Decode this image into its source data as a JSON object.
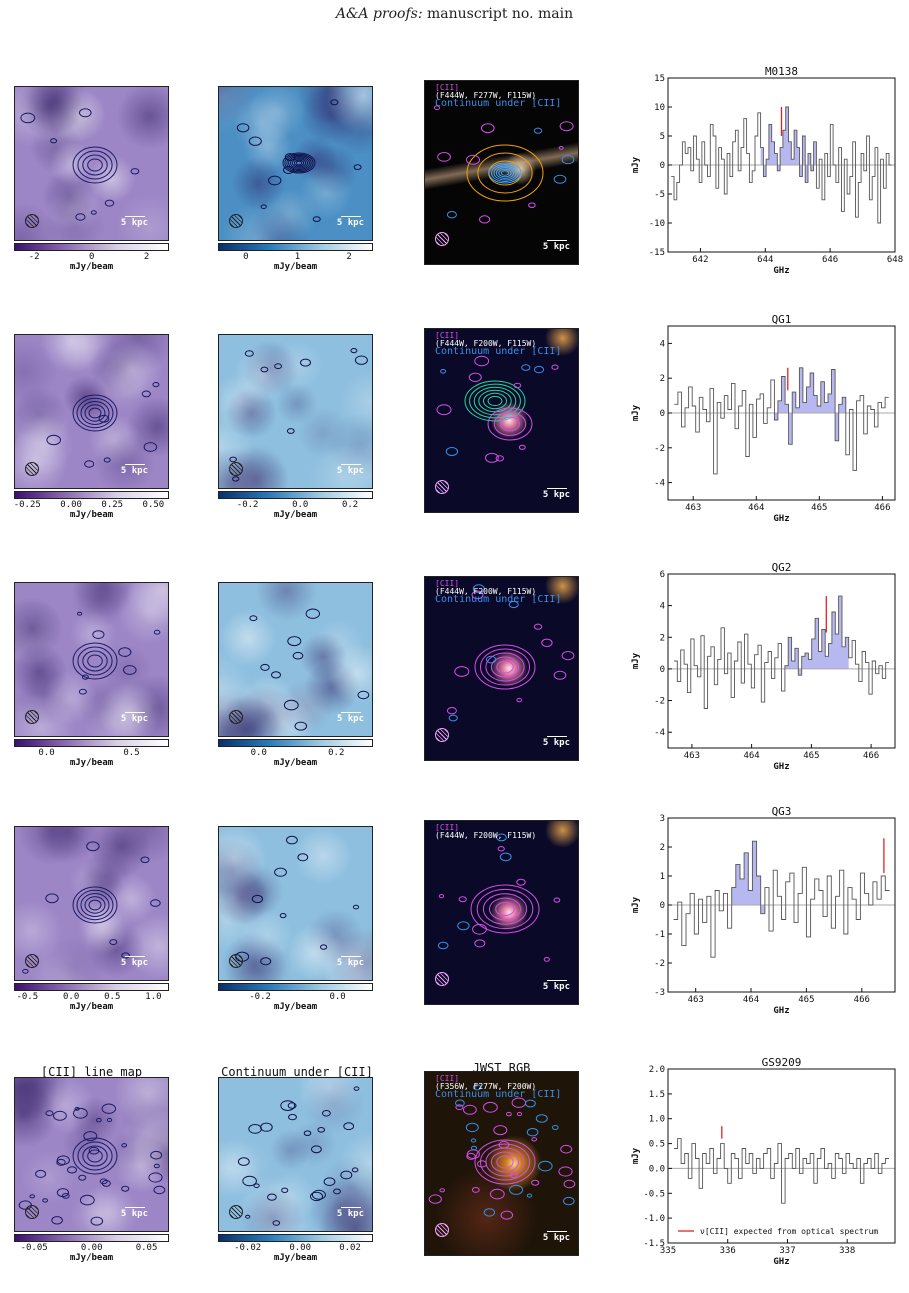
{
  "header": {
    "journal": "A&A proofs:",
    "rest": " manuscript no. main"
  },
  "columns": {
    "line_title": "[CII] line map",
    "cont_title": "Continuum under [CII]",
    "rgb_title": "JWST RGB"
  },
  "scale_label": "5 kpc",
  "cbar_unit": "mJy/beam",
  "legend_line": "[CII]",
  "legend_cont": "Continuum under [CII]",
  "spec_legend": "ν[CII] expected from optical spectrum",
  "spec_xlabel": "GHz",
  "spec_ylabel": "mJy",
  "colors": {
    "line_cmap": "#6a3d9a",
    "cont_cmap": "#2b7bba",
    "line_contour": "#d44ee8",
    "cont_contour": "#3a8ee8",
    "expected_line": "#e22222",
    "fill": "#b8b8f0"
  },
  "rows": [
    {
      "name": "M0138",
      "rgb_filters": "(F444W, F277W, F115W)",
      "show_cont_legend": true,
      "line_cbar_ticks": [
        "-2",
        "0",
        "2"
      ],
      "cont_cbar_ticks": [
        "0",
        "1",
        "2"
      ],
      "chart_data": {
        "type": "line",
        "title": "M0138",
        "xlabel": "GHz",
        "ylabel": "mJy",
        "xlim": [
          641,
          648
        ],
        "ylim": [
          -15,
          15
        ],
        "xticks": [
          642,
          644,
          646,
          648
        ],
        "yticks": [
          -15,
          -10,
          -5,
          0,
          5,
          10,
          15
        ],
        "expected_freq": 644.5,
        "fill_range": [
          643.9,
          645.5
        ],
        "y": [
          -2,
          -6,
          -3,
          0,
          4,
          2,
          3,
          -1,
          5,
          1,
          -3,
          4,
          0,
          -2,
          7,
          5,
          -4,
          3,
          1,
          -5,
          2,
          -2,
          4,
          6,
          -1,
          3,
          8,
          2,
          -3,
          -1,
          5,
          9,
          3,
          -2,
          1,
          7,
          4,
          2,
          -1,
          3,
          6,
          10,
          4,
          1,
          6,
          3,
          -2,
          5,
          -3,
          2,
          -1,
          4,
          -4,
          1,
          -6,
          2,
          -2,
          7,
          0,
          -3,
          3,
          -8,
          1,
          -5,
          -2,
          4,
          -9,
          -3,
          2,
          -1,
          5,
          -6,
          -2,
          3,
          -10,
          1,
          -4,
          2,
          0
        ]
      }
    },
    {
      "name": "QG1",
      "rgb_filters": "(F444W, F200W, F115W)",
      "show_cont_legend": true,
      "line_cbar_ticks": [
        "-0.25",
        "0.00",
        "0.25",
        "0.50"
      ],
      "cont_cbar_ticks": [
        "-0.2",
        "0.0",
        "0.2"
      ],
      "chart_data": {
        "type": "line",
        "title": "QG1",
        "xlabel": "GHz",
        "ylabel": "mJy",
        "xlim": [
          462.6,
          466.2
        ],
        "ylim": [
          -5,
          5
        ],
        "xticks": [
          463,
          464,
          465,
          466
        ],
        "yticks": [
          -4,
          -2,
          0,
          2,
          4
        ],
        "expected_freq": 464.5,
        "fill_range": [
          464.3,
          465.4
        ],
        "y": [
          0.5,
          1.2,
          -0.8,
          0.3,
          1.5,
          0.4,
          -1.1,
          0.9,
          0.2,
          -0.5,
          1.4,
          -3.5,
          0.6,
          -0.3,
          1.0,
          0.2,
          1.7,
          -0.9,
          0.4,
          1.3,
          -2.5,
          0.5,
          -1.4,
          0.8,
          1.1,
          -0.6,
          0.3,
          1.9,
          -0.4,
          0.7,
          2.1,
          0.5,
          -1.8,
          1.2,
          0.3,
          2.6,
          0.6,
          1.5,
          2.3,
          1.0,
          0.4,
          1.8,
          0.6,
          1.1,
          2.5,
          -1.6,
          0.5,
          0.9,
          -2.4,
          0.2,
          -3.3,
          0.7,
          1.0,
          -1.2,
          0.4,
          0.2,
          -0.8,
          0.6,
          0.3,
          0.9
        ]
      }
    },
    {
      "name": "QG2",
      "rgb_filters": "(F444W, F200W, F115W)",
      "show_cont_legend": true,
      "line_cbar_ticks": [
        "0.0",
        "0.5"
      ],
      "cont_cbar_ticks": [
        "0.0",
        "0.2"
      ],
      "chart_data": {
        "type": "line",
        "title": "QG2",
        "xlabel": "GHz",
        "ylabel": "mJy",
        "xlim": [
          462.6,
          466.4
        ],
        "ylim": [
          -5,
          6
        ],
        "xticks": [
          463,
          464,
          465,
          466
        ],
        "yticks": [
          -4,
          -2,
          0,
          2,
          4,
          6
        ],
        "expected_freq": 465.25,
        "fill_range": [
          464.6,
          465.6
        ],
        "y": [
          0.5,
          -0.8,
          1.2,
          0.3,
          -1.5,
          1.9,
          0.2,
          -0.5,
          2.1,
          -2.5,
          0.8,
          1.4,
          -1.0,
          0.6,
          2.6,
          -0.3,
          1.0,
          -1.8,
          0.5,
          1.7,
          -0.9,
          2.2,
          0.3,
          -1.2,
          0.9,
          1.5,
          -2.1,
          0.4,
          1.1,
          -0.6,
          0.7,
          1.6,
          -1.4,
          0.2,
          2.0,
          0.5,
          1.3,
          -0.4,
          0.8,
          1.0,
          0.6,
          1.9,
          3.2,
          1.1,
          2.5,
          0.8,
          1.6,
          3.6,
          2.2,
          4.6,
          1.4,
          2.0,
          0.7,
          1.8,
          0.3,
          -0.8,
          1.1,
          0.4,
          -1.6,
          0.5,
          -0.3,
          0.2,
          -0.6,
          0.4
        ]
      }
    },
    {
      "name": "QG3",
      "rgb_filters": "(F444W, F200W, F115W)",
      "show_cont_legend": false,
      "line_cbar_ticks": [
        "-0.5",
        "0.0",
        "0.5",
        "1.0"
      ],
      "cont_cbar_ticks": [
        "-0.2",
        "0.0"
      ],
      "chart_data": {
        "type": "line",
        "title": "QG3",
        "xlabel": "GHz",
        "ylabel": "mJy",
        "xlim": [
          462.5,
          466.6
        ],
        "ylim": [
          -3,
          3
        ],
        "xticks": [
          463,
          464,
          465,
          466
        ],
        "yticks": [
          -3,
          -2,
          -1,
          0,
          1,
          2,
          3
        ],
        "expected_freq": 466.4,
        "fill_range": [
          463.7,
          464.2
        ],
        "y": [
          -0.5,
          0.1,
          -1.4,
          -0.3,
          0.4,
          -1.0,
          0.2,
          -0.6,
          0.3,
          -1.8,
          0.5,
          -0.2,
          0.4,
          -0.8,
          0.6,
          1.4,
          0.9,
          1.8,
          0.5,
          2.2,
          1.0,
          -0.3,
          0.6,
          -0.9,
          1.2,
          0.3,
          -0.5,
          0.8,
          1.1,
          -0.6,
          0.4,
          1.3,
          -1.1,
          0.2,
          0.9,
          0.5,
          -0.4,
          1.0,
          -0.8,
          0.3,
          1.2,
          -1.0,
          0.6,
          0.2,
          -0.5,
          1.1,
          0.4,
          0.0,
          0.8,
          0.2,
          1.0,
          0.5
        ]
      }
    },
    {
      "name": "GS9209",
      "rgb_filters": "(F356W, F277W, F200W)",
      "show_cont_legend": true,
      "line_cbar_ticks": [
        "-0.05",
        "0.00",
        "0.05"
      ],
      "cont_cbar_ticks": [
        "-0.02",
        "0.00",
        "0.02"
      ],
      "chart_data": {
        "type": "line",
        "title": "GS9209",
        "xlabel": "GHz",
        "ylabel": "mJy",
        "xlim": [
          335,
          338.8
        ],
        "ylim": [
          -1.5,
          2.0
        ],
        "xticks": [
          335,
          336,
          337,
          338
        ],
        "yticks": [
          -1.5,
          -1.0,
          -0.5,
          0.0,
          0.5,
          1.0,
          1.5,
          2.0
        ],
        "expected_freq": 335.9,
        "fill_range": null,
        "y": [
          0.4,
          0.6,
          0.1,
          0.3,
          -0.2,
          0.5,
          0.2,
          -0.4,
          0.3,
          0.1,
          0.4,
          -0.1,
          0.2,
          0.5,
          0.0,
          -0.3,
          0.3,
          0.2,
          -0.2,
          0.4,
          0.1,
          0.3,
          -0.1,
          0.2,
          0.0,
          0.3,
          0.4,
          -0.2,
          0.1,
          0.5,
          -0.7,
          0.2,
          0.3,
          0.0,
          0.4,
          -0.1,
          0.2,
          0.1,
          0.3,
          -0.3,
          0.2,
          0.4,
          0.0,
          0.1,
          -0.2,
          0.3,
          0.2,
          -0.1,
          0.3,
          0.1,
          0.0,
          0.2,
          -0.3,
          0.1,
          0.2,
          0.0,
          0.3,
          -0.1,
          0.1,
          0.2
        ]
      }
    }
  ]
}
